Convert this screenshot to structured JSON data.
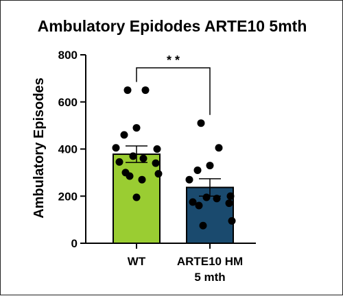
{
  "chart_data": {
    "type": "bar",
    "title": "Ambulatory Epidodes ARTE10 5mth",
    "xlabel": "",
    "ylabel": "Ambulatory Episodes",
    "ylim": [
      0,
      800
    ],
    "yticks": [
      0,
      200,
      400,
      600,
      800
    ],
    "grid": false,
    "categories": [
      "WT",
      "ARTE10 HM\n5 mth"
    ],
    "values": [
      378,
      237
    ],
    "sem": [
      35,
      37
    ],
    "colors": [
      "#9acd32",
      "#1a4a6e"
    ],
    "points": [
      [
        650,
        650,
        490,
        460,
        405,
        400,
        370,
        360,
        345,
        340,
        300,
        295,
        285,
        270,
        195
      ],
      [
        510,
        405,
        330,
        310,
        270,
        200,
        195,
        190,
        175,
        170,
        160,
        95,
        75
      ]
    ],
    "significance": {
      "from": 0,
      "to": 1,
      "label": "* *"
    }
  }
}
